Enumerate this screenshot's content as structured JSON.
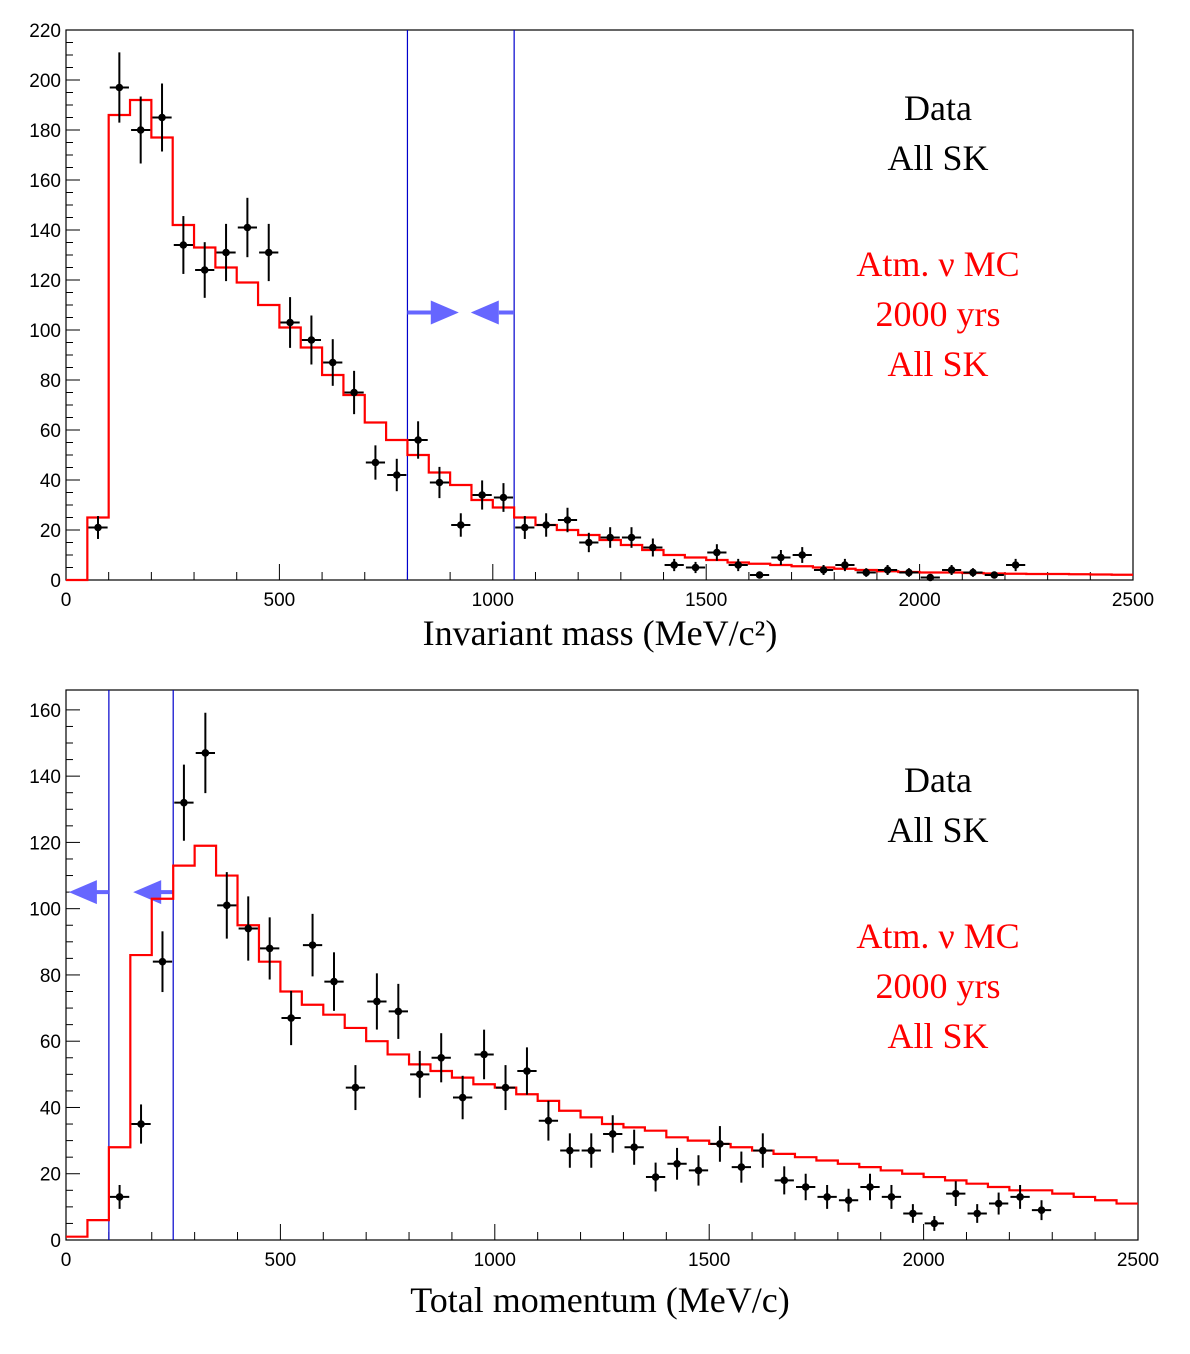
{
  "colors": {
    "data": "#000000",
    "mc": "#ff0000",
    "cut": "#0000cc",
    "arrow": "#6666ff"
  },
  "chart_data": [
    {
      "type": "histogram",
      "xlabel": "Invariant mass (MeV/c²)",
      "xlim": [
        0,
        2500
      ],
      "ylim": [
        0,
        220
      ],
      "xticks": [
        0,
        500,
        1000,
        1500,
        2000,
        2500
      ],
      "xtick_labels": [
        "0",
        "500",
        "1000",
        "1500",
        "2000",
        "2500"
      ],
      "yticks": [
        0,
        20,
        40,
        60,
        80,
        100,
        120,
        140,
        160,
        180,
        200,
        220
      ],
      "ytick_labels": [
        "0",
        "20",
        "40",
        "60",
        "80",
        "100",
        "120",
        "140",
        "160",
        "180",
        "200",
        "220"
      ],
      "legend": {
        "data_lines": [
          "Data",
          "All SK"
        ],
        "mc_lines": [
          "Atm. ν MC",
          "2000 yrs",
          "All SK"
        ]
      },
      "cuts": [
        800,
        1050
      ],
      "cut_arrow_y": 107,
      "cut_arrow_direction": "inward",
      "bin_width": 50,
      "series": [
        {
          "name": "Data",
          "style": "points-with-errors",
          "x": [
            75,
            125,
            175,
            225,
            275,
            325,
            375,
            425,
            475,
            525,
            575,
            625,
            675,
            725,
            775,
            825,
            875,
            925,
            975,
            1025,
            1075,
            1125,
            1175,
            1225,
            1275,
            1325,
            1375,
            1425,
            1475,
            1525,
            1575,
            1625,
            1675,
            1725,
            1775,
            1825,
            1875,
            1925,
            1975,
            2025,
            2075,
            2125,
            2175,
            2225,
            2275,
            2325,
            2375,
            2425,
            2475
          ],
          "y": [
            21,
            197,
            180,
            185,
            134,
            124,
            131,
            141,
            131,
            103,
            96,
            87,
            75,
            47,
            42,
            56,
            39,
            22,
            34,
            33,
            21,
            22,
            24,
            15,
            17,
            17,
            13,
            6,
            5,
            11,
            6,
            2,
            9,
            10,
            4,
            6,
            3,
            4,
            3,
            1,
            4,
            3,
            2,
            6,
            0,
            0,
            0,
            0,
            0
          ]
        },
        {
          "name": "Atm. ν MC",
          "style": "step",
          "x": [
            25,
            75,
            125,
            175,
            225,
            275,
            325,
            375,
            425,
            475,
            525,
            575,
            625,
            675,
            725,
            775,
            825,
            875,
            925,
            975,
            1025,
            1075,
            1125,
            1175,
            1225,
            1275,
            1325,
            1375,
            1425,
            1475,
            1525,
            1575,
            1625,
            1675,
            1725,
            1775,
            1825,
            1875,
            1925,
            1975,
            2025,
            2075,
            2125,
            2175,
            2225,
            2275,
            2325,
            2375,
            2425,
            2475
          ],
          "y": [
            0,
            25,
            186,
            192,
            177,
            142,
            133,
            125,
            119,
            110,
            101,
            93,
            82,
            74,
            63,
            56,
            50,
            43,
            38,
            32,
            29,
            25,
            22,
            20,
            18,
            16,
            14,
            12,
            10,
            9,
            8,
            7,
            6.5,
            6,
            5.5,
            5,
            4.5,
            4,
            3.5,
            3.2,
            3,
            3,
            2.8,
            2.6,
            2.5,
            2.4,
            2.4,
            2.3,
            2.2,
            2.1
          ]
        }
      ]
    },
    {
      "type": "histogram",
      "xlabel": "Total momentum (MeV/c)",
      "xlim": [
        0,
        2500
      ],
      "ylim": [
        0,
        166
      ],
      "xticks": [
        0,
        500,
        1000,
        1500,
        2000,
        2500
      ],
      "xtick_labels": [
        "0",
        "500",
        "1000",
        "1500",
        "2000",
        "2500"
      ],
      "yticks": [
        0,
        20,
        40,
        60,
        80,
        100,
        120,
        140,
        160
      ],
      "ytick_labels": [
        "0",
        "20",
        "40",
        "60",
        "80",
        "100",
        "120",
        "140",
        "160"
      ],
      "legend": {
        "data_lines": [
          "Data",
          "All SK"
        ],
        "mc_lines": [
          "Atm. ν MC",
          "2000 yrs",
          "All SK"
        ]
      },
      "cuts": [
        100,
        250
      ],
      "cut_arrow_y": 105,
      "cut_arrow_direction": "left",
      "bin_width": 50,
      "series": [
        {
          "name": "Data",
          "style": "points-with-errors",
          "x": [
            25,
            75,
            125,
            175,
            225,
            275,
            325,
            375,
            425,
            475,
            525,
            575,
            625,
            675,
            725,
            775,
            825,
            875,
            925,
            975,
            1025,
            1075,
            1125,
            1175,
            1225,
            1275,
            1325,
            1375,
            1425,
            1475,
            1525,
            1575,
            1625,
            1675,
            1725,
            1775,
            1825,
            1875,
            1925,
            1975,
            2025,
            2075,
            2125,
            2175,
            2225,
            2275,
            2325,
            2375,
            2425,
            2475
          ],
          "y": [
            0,
            0,
            13,
            35,
            84,
            132,
            147,
            101,
            94,
            88,
            67,
            89,
            78,
            46,
            72,
            69,
            50,
            55,
            43,
            56,
            46,
            51,
            36,
            27,
            27,
            32,
            28,
            19,
            23,
            21,
            29,
            22,
            27,
            18,
            16,
            13,
            12,
            16,
            13,
            8,
            5,
            14,
            8,
            11,
            13,
            9,
            0,
            0,
            0,
            0
          ]
        },
        {
          "name": "Atm. ν MC",
          "style": "step",
          "x": [
            25,
            75,
            125,
            175,
            225,
            275,
            325,
            375,
            425,
            475,
            525,
            575,
            625,
            675,
            725,
            775,
            825,
            875,
            925,
            975,
            1025,
            1075,
            1125,
            1175,
            1225,
            1275,
            1325,
            1375,
            1425,
            1475,
            1525,
            1575,
            1625,
            1675,
            1725,
            1775,
            1825,
            1875,
            1925,
            1975,
            2025,
            2075,
            2125,
            2175,
            2225,
            2275,
            2325,
            2375,
            2425,
            2475
          ],
          "y": [
            1,
            6,
            28,
            86,
            103,
            113,
            119,
            110,
            95,
            84,
            75,
            71,
            68,
            64,
            60,
            56,
            53,
            51,
            49,
            47,
            46,
            44,
            42,
            39,
            37,
            35,
            34,
            33,
            31,
            30,
            29,
            28,
            27,
            26,
            25,
            24,
            23,
            22,
            21,
            20,
            19,
            18,
            17,
            16,
            15,
            15,
            14,
            13,
            12,
            11
          ]
        }
      ]
    }
  ]
}
